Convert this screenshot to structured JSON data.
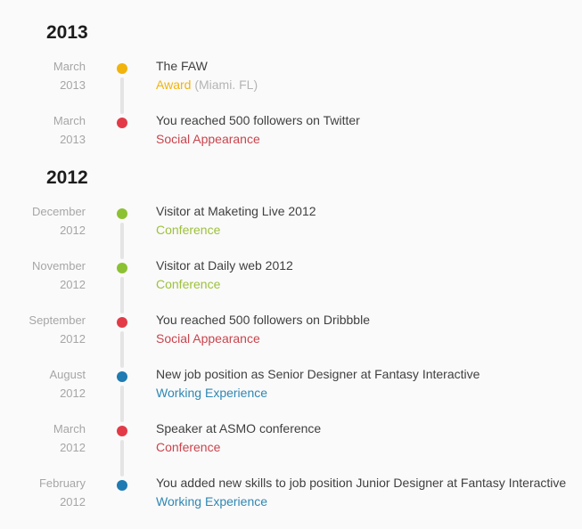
{
  "colors": {
    "background": "#fafafa",
    "heading": "#1c1c1c",
    "date_text": "#a6a6a6",
    "title_text": "#3f3f3f",
    "connector_line": "#e4e4e4",
    "suffix_text": "#b4b4b4"
  },
  "timeline": {
    "groups": [
      {
        "year_label": "2013",
        "events": [
          {
            "date_month": "March",
            "date_year": "2013",
            "title": "The FAW",
            "category": "Award",
            "category_suffix": " (Miami. FL)",
            "dot_color": "#f1b30d",
            "category_color": "#f1b30d",
            "category_kind": "award"
          },
          {
            "date_month": "March",
            "date_year": "2013",
            "title": "You reached 500 followers on Twitter",
            "category": "Social Appearance",
            "category_suffix": "",
            "dot_color": "#e23b47",
            "category_color": "#c9444d",
            "category_kind": "social-appearance"
          }
        ]
      },
      {
        "year_label": "2012",
        "events": [
          {
            "date_month": "December",
            "date_year": "2012",
            "title": "Visitor at Maketing Live 2012",
            "category": "Conference",
            "category_suffix": "",
            "dot_color": "#8cc133",
            "category_color": "#9dc13c",
            "category_kind": "conference"
          },
          {
            "date_month": "November",
            "date_year": "2012",
            "title": "Visitor at Daily web 2012",
            "category": "Conference",
            "category_suffix": "",
            "dot_color": "#8cc133",
            "category_color": "#9dc13c",
            "category_kind": "conference"
          },
          {
            "date_month": "September",
            "date_year": "2012",
            "title": "You reached 500 followers on Dribbble",
            "category": "Social Appearance",
            "category_suffix": "",
            "dot_color": "#e23b47",
            "category_color": "#c9444d",
            "category_kind": "social-appearance"
          },
          {
            "date_month": "August",
            "date_year": "2012",
            "title": "New job position as Senior Designer at Fantasy Interactive",
            "category": "Working Experience",
            "category_suffix": "",
            "dot_color": "#1f7bb1",
            "category_color": "#2f87b4",
            "category_kind": "working-experience"
          },
          {
            "date_month": "March",
            "date_year": "2012",
            "title": "Speaker at ASMO conference",
            "category": "Conference",
            "category_suffix": "",
            "dot_color": "#e23b47",
            "category_color": "#c9444d",
            "category_kind": "conference"
          },
          {
            "date_month": "February",
            "date_year": "2012",
            "title": "You added new skills to job position Junior Designer at Fantasy Interactive",
            "category": "Working Experience",
            "category_suffix": "",
            "dot_color": "#1f7bb1",
            "category_color": "#2f87b4",
            "category_kind": "working-experience"
          }
        ]
      }
    ]
  }
}
